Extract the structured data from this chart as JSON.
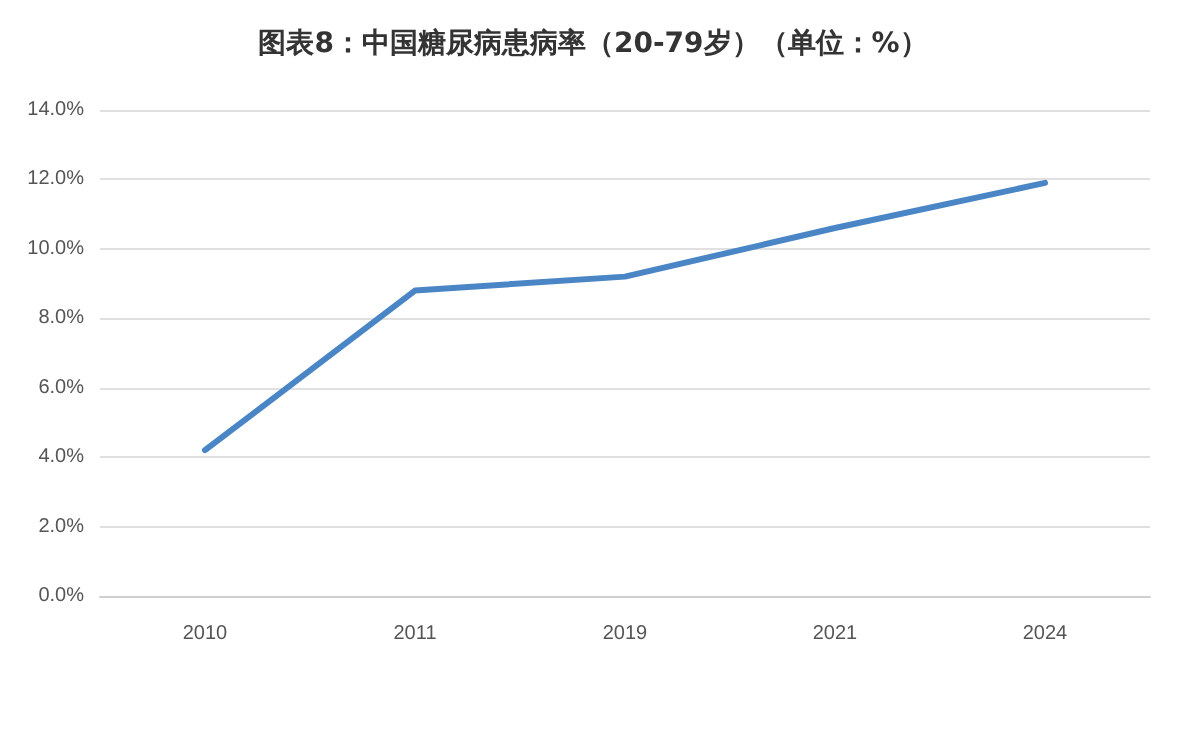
{
  "chart_data": {
    "type": "line",
    "title": "图表8：中国糖尿病患病率（20-79岁）（单位：%）",
    "categories": [
      "2010",
      "2011",
      "2019",
      "2021",
      "2024"
    ],
    "series": [
      {
        "color": "#4a86c5",
        "values": [
          4.2,
          8.8,
          9.2,
          10.6,
          11.9
        ]
      }
    ],
    "ylim": [
      0,
      14
    ],
    "yticks": [
      {
        "value": 0,
        "label": "0.0%"
      },
      {
        "value": 2,
        "label": "2.0%"
      },
      {
        "value": 4,
        "label": "4.0%"
      },
      {
        "value": 6,
        "label": "6.0%"
      },
      {
        "value": 8,
        "label": "8.0%"
      },
      {
        "value": 10,
        "label": "10.0%"
      },
      {
        "value": 12,
        "label": "12.0%"
      },
      {
        "value": 14,
        "label": "14.0%"
      }
    ],
    "grid": "y",
    "marker": "none",
    "line_style": "solid"
  }
}
